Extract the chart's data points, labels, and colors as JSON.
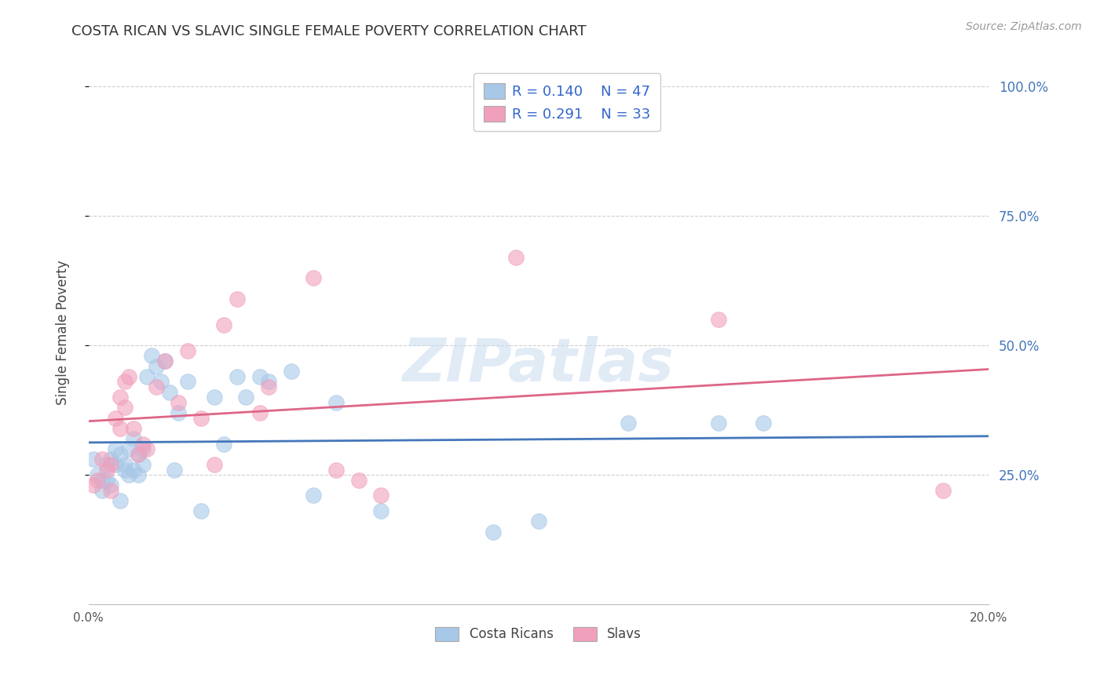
{
  "title": "COSTA RICAN VS SLAVIC SINGLE FEMALE POVERTY CORRELATION CHART",
  "source": "Source: ZipAtlas.com",
  "ylabel": "Single Female Poverty",
  "xlim": [
    0.0,
    0.2
  ],
  "ylim": [
    0.0,
    1.05
  ],
  "yticks": [
    0.25,
    0.5,
    0.75,
    1.0
  ],
  "ytick_labels": [
    "25.0%",
    "50.0%",
    "75.0%",
    "100.0%"
  ],
  "xticks": [
    0.0,
    0.05,
    0.1,
    0.15,
    0.2
  ],
  "xtick_labels": [
    "0.0%",
    "",
    "",
    "",
    "20.0%"
  ],
  "legend_r1": "R = 0.140",
  "legend_n1": "N = 47",
  "legend_r2": "R = 0.291",
  "legend_n2": "N = 33",
  "legend_label1": "Costa Ricans",
  "legend_label2": "Slavs",
  "color_blue": "#A8C8E8",
  "color_pink": "#F0A0BC",
  "color_blue_line": "#4477BB",
  "color_pink_line": "#DD6688",
  "watermark": "ZIPatlas",
  "costa_rican_x": [
    0.001,
    0.002,
    0.003,
    0.003,
    0.004,
    0.004,
    0.005,
    0.005,
    0.006,
    0.006,
    0.007,
    0.007,
    0.008,
    0.008,
    0.009,
    0.009,
    0.01,
    0.01,
    0.011,
    0.011,
    0.012,
    0.012,
    0.013,
    0.014,
    0.015,
    0.016,
    0.017,
    0.018,
    0.019,
    0.02,
    0.022,
    0.025,
    0.028,
    0.03,
    0.033,
    0.035,
    0.038,
    0.04,
    0.045,
    0.05,
    0.055,
    0.065,
    0.09,
    0.1,
    0.12,
    0.14,
    0.15
  ],
  "costa_rican_y": [
    0.28,
    0.25,
    0.24,
    0.22,
    0.24,
    0.27,
    0.28,
    0.23,
    0.27,
    0.3,
    0.29,
    0.2,
    0.26,
    0.27,
    0.3,
    0.25,
    0.26,
    0.32,
    0.29,
    0.25,
    0.3,
    0.27,
    0.44,
    0.48,
    0.46,
    0.43,
    0.47,
    0.41,
    0.26,
    0.37,
    0.43,
    0.18,
    0.4,
    0.31,
    0.44,
    0.4,
    0.44,
    0.43,
    0.45,
    0.21,
    0.39,
    0.18,
    0.14,
    0.16,
    0.35,
    0.35,
    0.35
  ],
  "slavic_x": [
    0.001,
    0.002,
    0.003,
    0.004,
    0.005,
    0.005,
    0.006,
    0.007,
    0.007,
    0.008,
    0.008,
    0.009,
    0.01,
    0.011,
    0.012,
    0.013,
    0.015,
    0.017,
    0.02,
    0.022,
    0.025,
    0.028,
    0.03,
    0.033,
    0.038,
    0.04,
    0.05,
    0.055,
    0.06,
    0.065,
    0.095,
    0.14,
    0.19
  ],
  "slavic_y": [
    0.23,
    0.24,
    0.28,
    0.26,
    0.22,
    0.27,
    0.36,
    0.34,
    0.4,
    0.38,
    0.43,
    0.44,
    0.34,
    0.29,
    0.31,
    0.3,
    0.42,
    0.47,
    0.39,
    0.49,
    0.36,
    0.27,
    0.54,
    0.59,
    0.37,
    0.42,
    0.63,
    0.26,
    0.24,
    0.21,
    0.67,
    0.55,
    0.22
  ]
}
